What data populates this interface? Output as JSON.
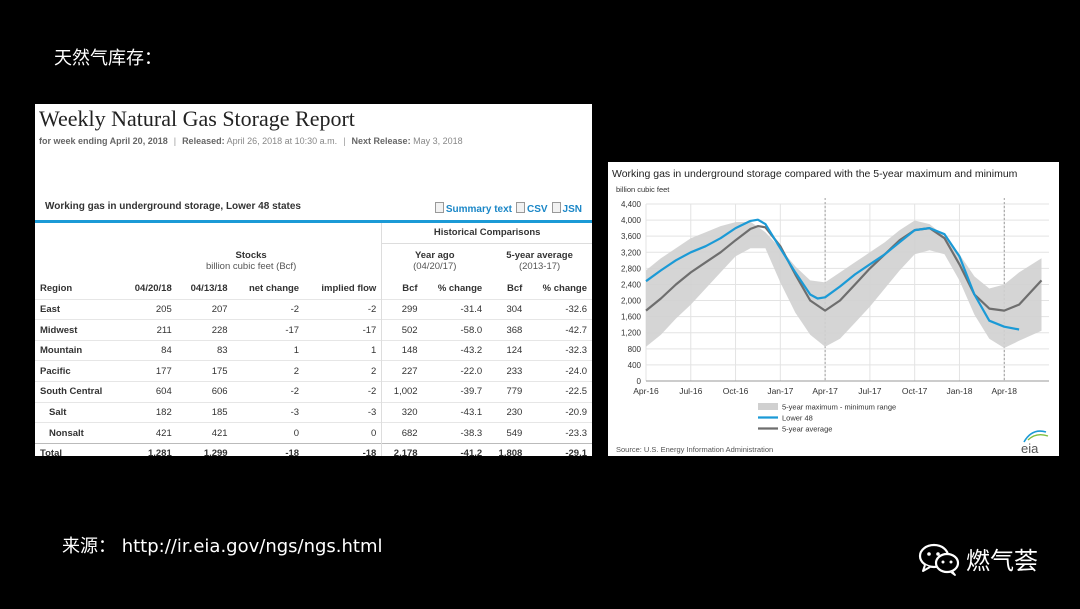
{
  "slide": {
    "title": "天然气库存：",
    "source": "来源：  http://ir.eia.gov/ngs/ngs.html",
    "brand": "燃气荟"
  },
  "report": {
    "title": "Weekly Natural Gas Storage Report",
    "meta": {
      "week_label": "for week ending April 20, 2018",
      "released_label": "Released:",
      "released_value": "April 26, 2018 at 10:30 a.m.",
      "next_label": "Next Release:",
      "next_value": "May 3, 2018",
      "separator": "|"
    },
    "panel_title": "Working gas in underground storage, Lower 48 states",
    "links": [
      "Summary text",
      "CSV",
      "JSN"
    ],
    "table": {
      "historical_label": "Historical Comparisons",
      "stocks_label": "Stocks",
      "stocks_unit": "billion cubic feet (Bcf)",
      "year_ago_label": "Year ago",
      "year_ago_date": "(04/20/17)",
      "five_year_label": "5-year average",
      "five_year_range": "(2013-17)",
      "columns": [
        "Region",
        "04/20/18",
        "04/13/18",
        "net change",
        "implied flow",
        "Bcf",
        "% change",
        "Bcf",
        "% change"
      ],
      "rows": [
        [
          "East",
          "205",
          "207",
          "-2",
          "-2",
          "299",
          "-31.4",
          "304",
          "-32.6"
        ],
        [
          "Midwest",
          "211",
          "228",
          "-17",
          "-17",
          "502",
          "-58.0",
          "368",
          "-42.7"
        ],
        [
          "Mountain",
          "84",
          "83",
          "1",
          "1",
          "148",
          "-43.2",
          "124",
          "-32.3"
        ],
        [
          "Pacific",
          "177",
          "175",
          "2",
          "2",
          "227",
          "-22.0",
          "233",
          "-24.0"
        ],
        [
          "South Central",
          "604",
          "606",
          "-2",
          "-2",
          "1,002",
          "-39.7",
          "779",
          "-22.5"
        ],
        [
          "Salt",
          "182",
          "185",
          "-3",
          "-3",
          "320",
          "-43.1",
          "230",
          "-20.9"
        ],
        [
          "Nonsalt",
          "421",
          "421",
          "0",
          "0",
          "682",
          "-38.3",
          "549",
          "-23.3"
        ],
        [
          "Total",
          "1,281",
          "1,299",
          "-18",
          "-18",
          "2,178",
          "-41.2",
          "1,808",
          "-29.1"
        ]
      ]
    }
  },
  "chart_data": {
    "type": "line",
    "title": "Working gas in underground  storage compared with the 5-year maximum and minimum",
    "ylabel": "billion cubic feet",
    "ylim": [
      0,
      4400
    ],
    "yticks": [
      0,
      400,
      800,
      1200,
      1600,
      2000,
      2400,
      2800,
      3200,
      3600,
      4000,
      4400
    ],
    "xlim": [
      0,
      27
    ],
    "xtick_labels": [
      "Apr-16",
      "Jul-16",
      "Oct-16",
      "Jan-17",
      "Apr-17",
      "Jul-17",
      "Oct-17",
      "Jan-18",
      "Apr-18"
    ],
    "xticks": [
      0,
      3,
      6,
      9,
      12,
      15,
      18,
      21,
      24
    ],
    "dashed_lines_at": [
      12,
      24
    ],
    "grid": true,
    "legend_position": "bottom-center",
    "source": "Source:  U.S. Energy Information Administration",
    "logo": "eia",
    "series": [
      {
        "name": "5-year maximum - minimum range",
        "kind": "band",
        "color": "#d0d0d0",
        "x": [
          0,
          1,
          2,
          3,
          4,
          5,
          6,
          7,
          8,
          9,
          10,
          11,
          12,
          13,
          14,
          15,
          16,
          17,
          18,
          19,
          20,
          21,
          22,
          23,
          24,
          25,
          26.5
        ],
        "upper": [
          2750,
          3050,
          3300,
          3550,
          3700,
          3850,
          3950,
          3960,
          3700,
          3300,
          2850,
          2500,
          2450,
          2700,
          2950,
          3200,
          3450,
          3750,
          3990,
          3900,
          3600,
          3150,
          2600,
          2300,
          2400,
          2700,
          3050
        ],
        "lower": [
          850,
          1150,
          1550,
          1900,
          2300,
          2700,
          3100,
          3300,
          3300,
          2450,
          1700,
          1150,
          850,
          1050,
          1450,
          1850,
          2300,
          2750,
          3150,
          3250,
          3150,
          2500,
          1650,
          1050,
          820,
          1000,
          1250
        ]
      },
      {
        "name": "Lower 48",
        "kind": "line",
        "color": "#1b9ad6",
        "x": [
          0,
          1,
          2,
          3,
          4,
          5,
          6,
          7,
          7.5,
          8,
          9,
          10,
          11,
          11.5,
          12,
          13,
          14,
          15,
          16,
          17,
          18,
          19,
          20,
          21,
          22,
          23,
          24,
          25
        ],
        "y": [
          2480,
          2750,
          3000,
          3200,
          3350,
          3550,
          3800,
          3980,
          4010,
          3900,
          3300,
          2700,
          2150,
          2050,
          2080,
          2350,
          2650,
          2900,
          3150,
          3450,
          3750,
          3800,
          3650,
          3100,
          2150,
          1500,
          1350,
          1280
        ]
      },
      {
        "name": "5-year average",
        "kind": "line",
        "color": "#6e6e6e",
        "x": [
          0,
          1,
          2,
          3,
          4,
          5,
          6,
          7,
          7.5,
          8,
          9,
          10,
          11,
          12,
          13,
          14,
          15,
          16,
          17,
          18,
          19,
          20,
          21,
          22,
          23,
          24,
          25,
          26.5
        ],
        "y": [
          1750,
          2050,
          2400,
          2700,
          2950,
          3200,
          3500,
          3780,
          3850,
          3820,
          3350,
          2650,
          2000,
          1750,
          2000,
          2400,
          2800,
          3150,
          3500,
          3750,
          3800,
          3550,
          2900,
          2150,
          1800,
          1750,
          1900,
          2500
        ]
      }
    ]
  }
}
